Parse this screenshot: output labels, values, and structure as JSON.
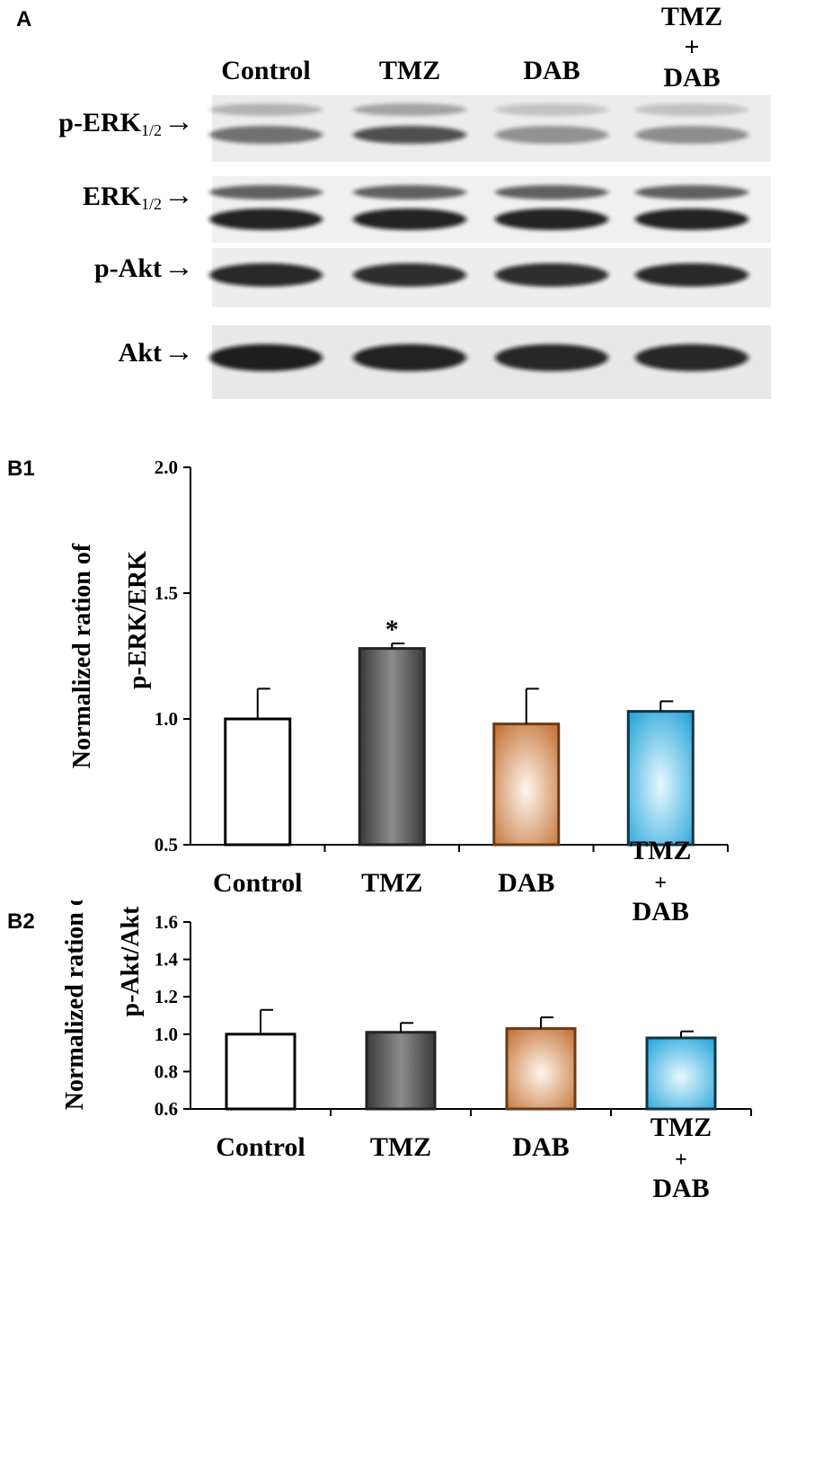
{
  "panels": {
    "a": "A",
    "b1": "B1",
    "b2": "B2"
  },
  "blot": {
    "lanes": [
      {
        "lines": [
          "Control"
        ]
      },
      {
        "lines": [
          "TMZ"
        ]
      },
      {
        "lines": [
          "DAB"
        ]
      },
      {
        "lines": [
          "TMZ",
          "+",
          "DAB"
        ]
      }
    ],
    "rows": [
      {
        "label": "p-ERK",
        "sub": "1/2",
        "intensity": [
          0.55,
          0.7,
          0.4,
          0.42
        ]
      },
      {
        "label": "ERK",
        "sub": "1/2",
        "intensity": [
          0.9,
          0.9,
          0.9,
          0.9
        ]
      },
      {
        "label": "p-Akt",
        "sub": "",
        "intensity": [
          0.88,
          0.85,
          0.85,
          0.87
        ]
      },
      {
        "label": "Akt",
        "sub": "",
        "intensity": [
          0.92,
          0.9,
          0.88,
          0.88
        ]
      }
    ],
    "arrow_glyph": "→"
  },
  "chart_data": [
    {
      "type": "bar",
      "ylabel_lines": [
        "Normalized ration of",
        "p-ERK/ERK"
      ],
      "categories": [
        [
          "Control"
        ],
        [
          "TMZ"
        ],
        [
          "DAB"
        ],
        [
          "TMZ",
          "+",
          "DAB"
        ]
      ],
      "values": [
        1.0,
        1.28,
        0.98,
        1.03
      ],
      "errors": [
        0.12,
        0.02,
        0.14,
        0.04
      ],
      "annotations": [
        "",
        "*",
        "",
        ""
      ],
      "ylim": [
        0.5,
        2.0
      ],
      "yticks": [
        0.5,
        1.0,
        1.5,
        2.0
      ],
      "ytick_labels": [
        "0.5",
        "1.0",
        "1.5",
        "2.0"
      ]
    },
    {
      "type": "bar",
      "ylabel_lines": [
        "Normalized ration of",
        "p-Akt/Akt"
      ],
      "categories": [
        [
          "Control"
        ],
        [
          "TMZ"
        ],
        [
          "DAB"
        ],
        [
          "TMZ",
          "+",
          "DAB"
        ]
      ],
      "values": [
        1.0,
        1.01,
        1.03,
        0.98
      ],
      "errors": [
        0.13,
        0.05,
        0.06,
        0.035
      ],
      "annotations": [
        "",
        "",
        "",
        ""
      ],
      "ylim": [
        0.6,
        1.6
      ],
      "yticks": [
        0.6,
        0.8,
        1.0,
        1.2,
        1.4,
        1.6
      ],
      "ytick_labels": [
        "0.6",
        "0.8",
        "1.0",
        "1.2",
        "1.4",
        "1.6"
      ]
    }
  ],
  "bar_styles": [
    {
      "name": "white",
      "edge": "#000000",
      "center": "#ffffff",
      "outer": "#ffffff"
    },
    {
      "name": "grey",
      "edge": "#222222",
      "center": "#8a8a8a",
      "outer": "#3d3d3d"
    },
    {
      "name": "brown",
      "edge": "#6b3a14",
      "center": "#fff6ee",
      "outer": "#c06a2a"
    },
    {
      "name": "blue",
      "edge": "#0e3446",
      "center": "#e8f8ff",
      "outer": "#1aa0d8"
    }
  ]
}
